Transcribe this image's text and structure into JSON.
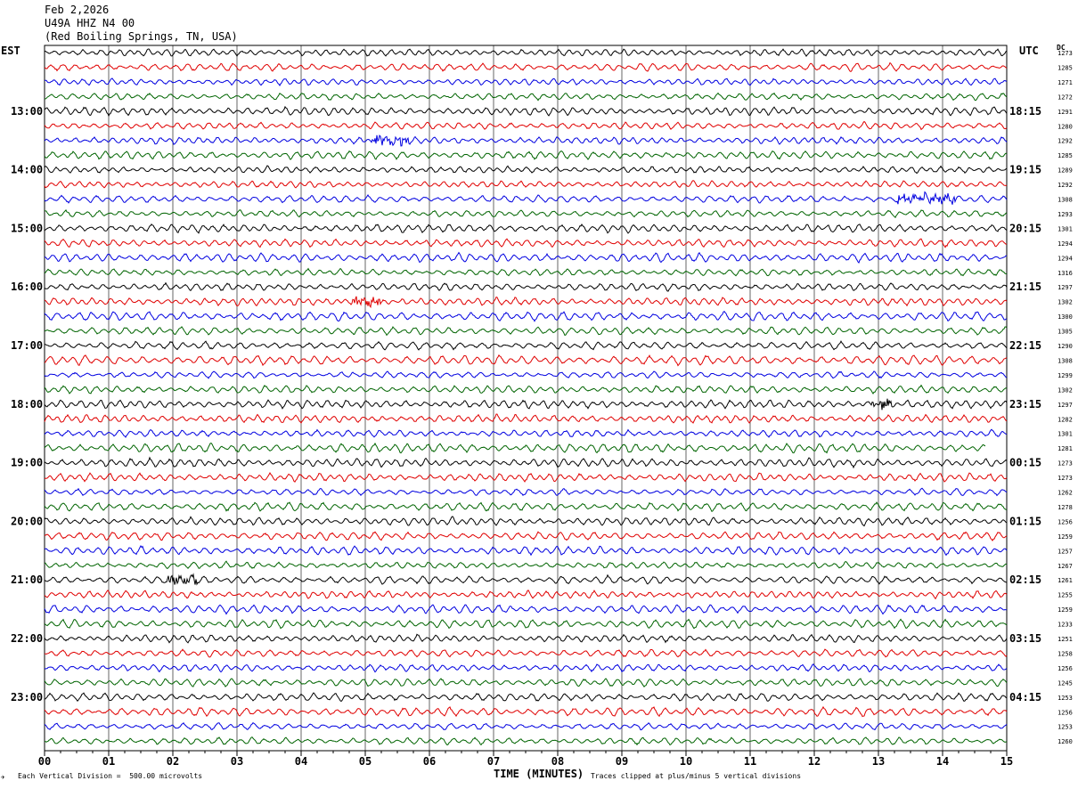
{
  "header": {
    "date": "Feb 2,2026",
    "station": "U49A HHZ N4 00",
    "location": "(Red Boiling Springs, TN, USA)"
  },
  "axes": {
    "left_label": "EST",
    "right_label": "UTC",
    "dc_label": "DC",
    "xlabel": "TIME (MINUTES)"
  },
  "footer": {
    "scale_note": "Each Vertical Division =  500.00 microvolts",
    "clip_note": "Traces clipped at plus/minus 5 vertical divisions",
    "mark": "✈"
  },
  "colors": {
    "trace_cycle": [
      "#000000",
      "#e00000",
      "#0000e0",
      "#006400"
    ],
    "grid": "#000000"
  },
  "chart_data": {
    "type": "line",
    "title": "",
    "xlabel": "TIME (MINUTES)",
    "xlim": [
      0,
      15
    ],
    "x_ticks": [
      "00",
      "01",
      "02",
      "03",
      "04",
      "05",
      "06",
      "07",
      "08",
      "09",
      "10",
      "11",
      "12",
      "13",
      "14",
      "15"
    ],
    "left_hour_labels": [
      "13:00",
      "14:00",
      "15:00",
      "16:00",
      "17:00",
      "18:00",
      "19:00",
      "20:00",
      "21:00",
      "22:00",
      "23:00"
    ],
    "right_hour_labels": [
      "18:15",
      "19:15",
      "20:15",
      "21:15",
      "22:15",
      "23:15",
      "00:15",
      "01:15",
      "02:15",
      "03:15",
      "04:15"
    ],
    "dc_offsets": [
      1273,
      1285,
      1271,
      1272,
      1291,
      1280,
      1292,
      1285,
      1289,
      1292,
      1308,
      1293,
      1301,
      1294,
      1294,
      1316,
      1297,
      1302,
      1300,
      1305,
      1290,
      1308,
      1299,
      1302,
      1297,
      1282,
      1301,
      1281,
      1273,
      1273,
      1262,
      1278,
      1256,
      1259,
      1257,
      1267,
      1261,
      1255,
      1259,
      1233,
      1251,
      1258,
      1256,
      1245,
      1253,
      1256,
      1253,
      1260
    ],
    "trace_minutes": 15,
    "trace_count": 48,
    "events": [
      {
        "trace": 6,
        "start_min": 5.1,
        "end_min": 5.7
      },
      {
        "trace": 10,
        "start_min": 13.3,
        "end_min": 14.2
      },
      {
        "trace": 17,
        "start_min": 4.8,
        "end_min": 5.3
      },
      {
        "trace": 24,
        "start_min": 12.9,
        "end_min": 13.2
      },
      {
        "trace": 36,
        "start_min": 1.9,
        "end_min": 2.4
      }
    ]
  }
}
